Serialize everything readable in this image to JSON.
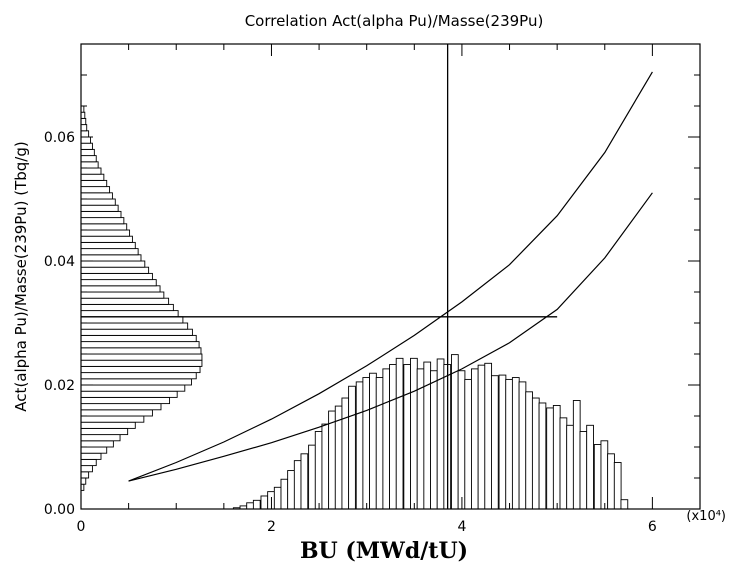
{
  "chart_data": {
    "type": "bar",
    "title": "Correlation Act(alpha Pu)/Masse(239Pu)",
    "xlabel": "BU (MWd/tU)",
    "ylabel": "Act(alpha Pu)/Masse(239Pu)  (Tbq/g)",
    "x_exponent_label": "(x10⁴)",
    "xlim": [
      0,
      6.5
    ],
    "ylim": [
      0,
      0.075
    ],
    "grid": false,
    "x_ticks": [
      {
        "v": 0,
        "label": "0"
      },
      {
        "v": 2,
        "label": "2"
      },
      {
        "v": 4,
        "label": "4"
      },
      {
        "v": 6,
        "label": "6"
      }
    ],
    "y_ticks": [
      {
        "v": 0.0,
        "label": "0.00"
      },
      {
        "v": 0.02,
        "label": "0.02"
      },
      {
        "v": 0.04,
        "label": "0.04"
      },
      {
        "v": 0.06,
        "label": "0.06"
      }
    ],
    "bu_histogram": {
      "bin_width": 0.0714,
      "bins_start": [
        1.6,
        1.67,
        1.74,
        1.81,
        1.89,
        1.96,
        2.03,
        2.1,
        2.17,
        2.24,
        2.31,
        2.39,
        2.46,
        2.53,
        2.6,
        2.67,
        2.74,
        2.81,
        2.89,
        2.96,
        3.03,
        3.1,
        3.17,
        3.24,
        3.31,
        3.39,
        3.46,
        3.53,
        3.6,
        3.67,
        3.74,
        3.81,
        3.89,
        3.96,
        4.03,
        4.1,
        4.17,
        4.24,
        4.31,
        4.39,
        4.46,
        4.53,
        4.6,
        4.67,
        4.74,
        4.81,
        4.89,
        4.96,
        5.03,
        5.1,
        5.17,
        5.24,
        5.31,
        5.39,
        5.46,
        5.53,
        5.6,
        5.67
      ],
      "heights": [
        0.0002,
        0.0005,
        0.001,
        0.0014,
        0.0021,
        0.0028,
        0.0035,
        0.0048,
        0.0062,
        0.0078,
        0.0089,
        0.0103,
        0.0125,
        0.0137,
        0.0158,
        0.0166,
        0.0179,
        0.0198,
        0.0205,
        0.0212,
        0.0219,
        0.0212,
        0.0226,
        0.0233,
        0.0243,
        0.0233,
        0.0243,
        0.0226,
        0.0237,
        0.0223,
        0.0242,
        0.0233,
        0.0249,
        0.0223,
        0.0209,
        0.0226,
        0.0232,
        0.0235,
        0.0215,
        0.0216,
        0.0209,
        0.0212,
        0.0205,
        0.0189,
        0.0179,
        0.0171,
        0.0163,
        0.0167,
        0.0147,
        0.0135,
        0.0175,
        0.0125,
        0.0135,
        0.0104,
        0.011,
        0.0089,
        0.0075,
        0.0015
      ]
    },
    "ratio_histogram": {
      "bin_height": 0.001,
      "bins_start": [
        0.003,
        0.004,
        0.005,
        0.006,
        0.007,
        0.008,
        0.009,
        0.01,
        0.011,
        0.012,
        0.013,
        0.014,
        0.015,
        0.016,
        0.017,
        0.018,
        0.019,
        0.02,
        0.021,
        0.022,
        0.023,
        0.024,
        0.025,
        0.026,
        0.027,
        0.028,
        0.029,
        0.03,
        0.031,
        0.032,
        0.033,
        0.034,
        0.035,
        0.036,
        0.037,
        0.038,
        0.039,
        0.04,
        0.041,
        0.042,
        0.043,
        0.044,
        0.045,
        0.046,
        0.047,
        0.048,
        0.049,
        0.05,
        0.051,
        0.052,
        0.053,
        0.054,
        0.055,
        0.056,
        0.057,
        0.058,
        0.059,
        0.06,
        0.061,
        0.062,
        0.063,
        0.064
      ],
      "widths": [
        0.03,
        0.05,
        0.08,
        0.12,
        0.16,
        0.21,
        0.27,
        0.34,
        0.41,
        0.49,
        0.57,
        0.66,
        0.75,
        0.84,
        0.93,
        1.01,
        1.09,
        1.16,
        1.21,
        1.25,
        1.27,
        1.27,
        1.26,
        1.24,
        1.21,
        1.17,
        1.12,
        1.07,
        1.02,
        0.97,
        0.92,
        0.87,
        0.83,
        0.79,
        0.75,
        0.71,
        0.67,
        0.63,
        0.6,
        0.57,
        0.54,
        0.51,
        0.48,
        0.45,
        0.42,
        0.39,
        0.36,
        0.33,
        0.3,
        0.27,
        0.24,
        0.21,
        0.18,
        0.16,
        0.14,
        0.12,
        0.1,
        0.08,
        0.06,
        0.05,
        0.04,
        0.03
      ]
    },
    "curves": [
      {
        "x": [
          0.5,
          1.0,
          1.5,
          2.0,
          2.5,
          3.0,
          3.5,
          4.0,
          4.5,
          5.0,
          5.5,
          6.0
        ],
        "y": [
          0.0045,
          0.0075,
          0.0108,
          0.0145,
          0.0186,
          0.0231,
          0.028,
          0.0334,
          0.0394,
          0.0473,
          0.0575,
          0.0705
        ]
      },
      {
        "x": [
          0.5,
          1.0,
          1.5,
          2.0,
          2.5,
          3.0,
          3.5,
          4.0,
          4.5,
          5.0,
          5.5,
          6.0
        ],
        "y": [
          0.0045,
          0.0064,
          0.0085,
          0.0107,
          0.0132,
          0.0159,
          0.019,
          0.0226,
          0.0268,
          0.0322,
          0.0405,
          0.051
        ]
      }
    ],
    "vertical_line_x": 3.85,
    "horizontal_line": {
      "y": 0.031,
      "x_end": 5.0
    }
  }
}
